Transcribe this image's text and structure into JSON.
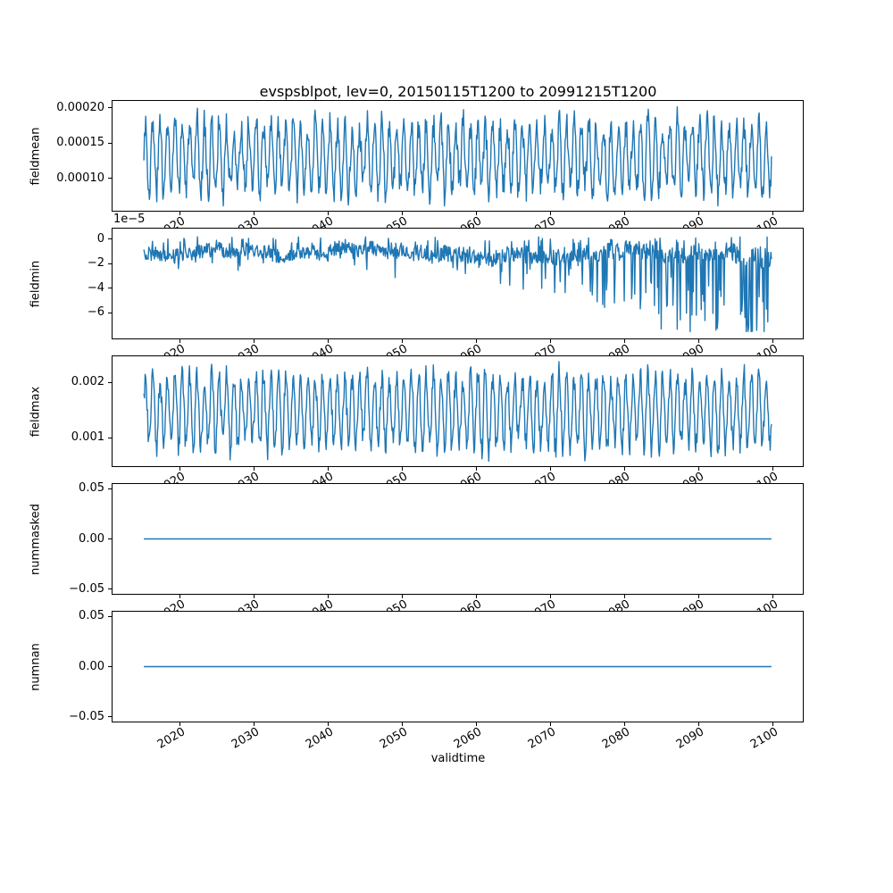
{
  "chart_data": {
    "type": "line",
    "title": "evspsblpot, lev=0, 20150115T1200 to 20991215T1200",
    "xlabel": "validtime",
    "line_color": "#1f77b4",
    "x_start": 2015.0417,
    "x_end": 2099.9583,
    "xlim": [
      2010.8,
      2104.2
    ],
    "n_points": 1020,
    "x_ticks": [
      2020,
      2030,
      2040,
      2050,
      2060,
      2070,
      2080,
      2090,
      2100
    ],
    "x_tick_labels": [
      "2020",
      "2030",
      "2040",
      "2050",
      "2060",
      "2070",
      "2080",
      "2090",
      "2100"
    ],
    "grid": false,
    "legend": "none",
    "subplots": [
      {
        "name": "fieldmean",
        "ylabel": "fieldmean",
        "ylim": [
          5.3e-05,
          0.000211
        ],
        "y_ticks": [
          0.0002,
          0.00015,
          0.0001
        ],
        "y_tick_labels": [
          "0.00020",
          "0.00015",
          "0.00010"
        ],
        "approx_value_range": [
          6e-05,
          0.000204
        ],
        "series": {
          "kind": "seasonal",
          "seed": 3,
          "mean": 0.00013,
          "amp": 4.6e-05,
          "noise": 2.1e-05,
          "min": 6e-05,
          "max": 0.000204,
          "phase": 0.3
        }
      },
      {
        "name": "fieldmin",
        "ylabel": "fieldmin",
        "offset_text": "1e−5",
        "ylim": [
          -8.16e-05,
          9.1e-06
        ],
        "y_ticks": [
          0,
          -2e-05,
          -4e-05,
          -6e-05
        ],
        "y_tick_labels": [
          "0",
          "−2",
          "−4",
          "−6"
        ],
        "approx_value_range": [
          -7.6e-05,
          3.5e-06
        ],
        "series": {
          "kind": "spiky",
          "seed": 5,
          "base": -1.15e-05,
          "noise": 5.5e-06,
          "wander": 1.5e-06,
          "wander_max": 4e-06,
          "p0": 0.025,
          "p_slope": 0.45,
          "d0": 1.8e-05,
          "d_slope": 0.0001,
          "floor": -7.6e-05,
          "cap": 3.5e-06
        }
      },
      {
        "name": "fieldmax",
        "ylabel": "fieldmax",
        "ylim": [
          0.000468,
          0.002484
        ],
        "y_ticks": [
          0.002,
          0.001
        ],
        "y_tick_labels": [
          "0.002",
          "0.001"
        ],
        "approx_value_range": [
          0.00056,
          0.00239
        ],
        "series": {
          "kind": "seasonal",
          "seed": 9,
          "mean": 0.00148,
          "amp": 0.00062,
          "noise": 0.00022,
          "min": 0.00056,
          "max": 0.00239,
          "phase": 0.3
        }
      },
      {
        "name": "nummasked",
        "ylabel": "nummasked",
        "ylim": [
          -0.0557,
          0.0557
        ],
        "y_ticks": [
          0.05,
          0,
          -0.05
        ],
        "y_tick_labels": [
          "0.05",
          "0.00",
          "−0.05"
        ],
        "approx_value_range": [
          0,
          0
        ],
        "series": {
          "kind": "flat",
          "value": 0
        }
      },
      {
        "name": "numnan",
        "ylabel": "numnan",
        "ylim": [
          -0.0557,
          0.0557
        ],
        "y_ticks": [
          0.05,
          0,
          -0.05
        ],
        "y_tick_labels": [
          "0.05",
          "0.00",
          "−0.05"
        ],
        "approx_value_range": [
          0,
          0
        ],
        "series": {
          "kind": "flat",
          "value": 0
        }
      }
    ]
  }
}
